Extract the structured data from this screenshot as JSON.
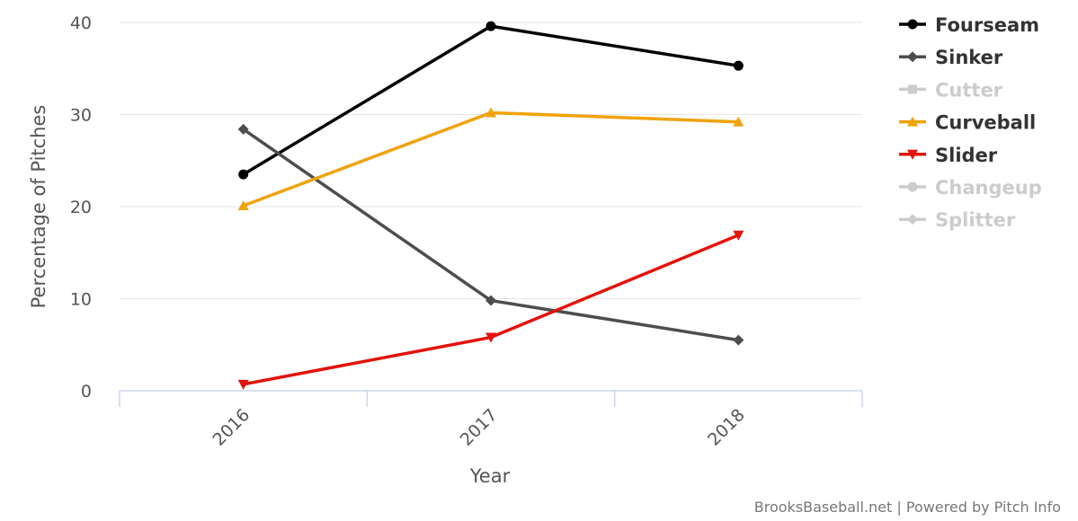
{
  "chart_data": {
    "type": "line",
    "title": "",
    "xlabel": "Year",
    "ylabel": "Percentage of Pitches",
    "categories": [
      "2016",
      "2017",
      "2018"
    ],
    "ylim": [
      0,
      40
    ],
    "yticks": [
      0,
      10,
      20,
      30,
      40
    ],
    "grid": true,
    "legend_position": "right",
    "series": [
      {
        "name": "Fourseam",
        "color": "#000000",
        "marker": "circle",
        "visible": true,
        "values": [
          23.5,
          39.6,
          35.3
        ]
      },
      {
        "name": "Sinker",
        "color": "#4d4d4d",
        "marker": "diamond",
        "visible": true,
        "values": [
          28.4,
          9.8,
          5.5
        ]
      },
      {
        "name": "Cutter",
        "color": "#cccccc",
        "marker": "square",
        "visible": false,
        "values": [
          null,
          null,
          null
        ]
      },
      {
        "name": "Curveball",
        "color": "#f0a30a",
        "marker": "triangle",
        "visible": true,
        "values": [
          20.1,
          30.2,
          29.2
        ]
      },
      {
        "name": "Slider",
        "color": "#e3120b",
        "marker": "triangle-down",
        "visible": true,
        "values": [
          0.7,
          5.8,
          16.9
        ]
      },
      {
        "name": "Changeup",
        "color": "#cccccc",
        "marker": "circle",
        "visible": false,
        "values": [
          null,
          null,
          null
        ]
      },
      {
        "name": "Splitter",
        "color": "#cccccc",
        "marker": "diamond",
        "visible": false,
        "values": [
          null,
          null,
          null
        ]
      }
    ],
    "credits": "BrooksBaseball.net | Powered by Pitch Info"
  }
}
